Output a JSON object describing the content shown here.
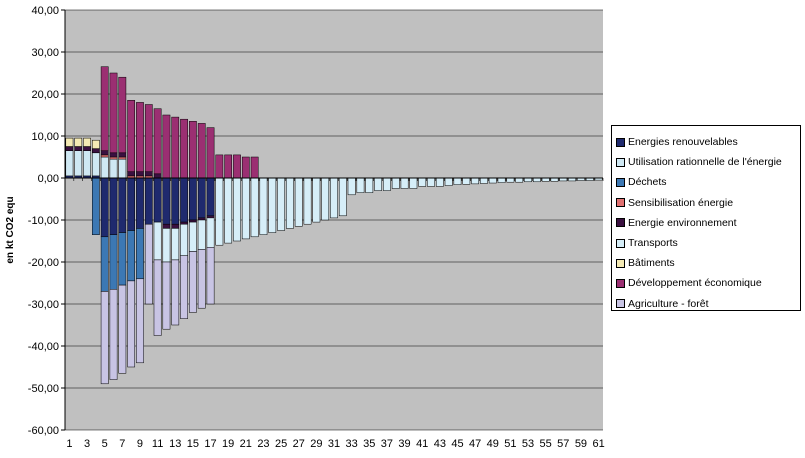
{
  "chart_data": {
    "type": "bar",
    "stacked": true,
    "title": "",
    "xlabel": "",
    "ylabel": "en kt CO2 equ",
    "ylim": [
      -60,
      40
    ],
    "yticks": [
      "40,00",
      "30,00",
      "20,00",
      "10,00",
      "0,00",
      "-10,00",
      "-20,00",
      "-30,00",
      "-40,00",
      "-50,00",
      "-60,00"
    ],
    "x_tick_labels": [
      "1",
      "3",
      "5",
      "7",
      "9",
      "11",
      "13",
      "15",
      "17",
      "19",
      "21",
      "23",
      "25",
      "27",
      "29",
      "31",
      "33",
      "35",
      "37",
      "39",
      "41",
      "43",
      "45",
      "47",
      "49",
      "51",
      "53",
      "55",
      "57",
      "59",
      "61"
    ],
    "categories": [
      1,
      2,
      3,
      4,
      5,
      6,
      7,
      8,
      9,
      10,
      11,
      12,
      13,
      14,
      15,
      16,
      17,
      18,
      19,
      20,
      21,
      22,
      23,
      24,
      25,
      26,
      27,
      28,
      29,
      30,
      31,
      32,
      33,
      34,
      35,
      36,
      37,
      38,
      39,
      40,
      41,
      42,
      43,
      44,
      45,
      46,
      47,
      48,
      49,
      50,
      51,
      52,
      53,
      54,
      55,
      56,
      57,
      58,
      59,
      60,
      61
    ],
    "grid": true,
    "plot_background": "#c0c0c0",
    "legend_position": "right",
    "series": [
      {
        "name": "Energies renouvelables",
        "color": "#1f2a6e",
        "values": [
          0.5,
          0.5,
          0.5,
          0.5,
          -14,
          -13.5,
          -13,
          -12.5,
          -12,
          -11,
          -10.5,
          -11,
          -11,
          -10.5,
          -10,
          -9.5,
          -9,
          0,
          0,
          0,
          0,
          0,
          0,
          0,
          0,
          0,
          0,
          0,
          0,
          0,
          0,
          0,
          0,
          0,
          0,
          0,
          0,
          0,
          0,
          0,
          0,
          0,
          0,
          0,
          0,
          0,
          0,
          0,
          0,
          0,
          0,
          0,
          0,
          0,
          0,
          0,
          0,
          0,
          0,
          0,
          0
        ]
      },
      {
        "name": "Utilisation rationnelle de l'énergie",
        "color": "#cfe8f3",
        "values": [
          6,
          6,
          6,
          5.5,
          5,
          4.5,
          4.5,
          0,
          0,
          0,
          0,
          0,
          0,
          0,
          0,
          0,
          0,
          0,
          0,
          0,
          0,
          0,
          0,
          0,
          0,
          0,
          0,
          0,
          0,
          0,
          0,
          0,
          0,
          0,
          0,
          0,
          0,
          0,
          0,
          0,
          0,
          0,
          0,
          0,
          0,
          0,
          0,
          0,
          0,
          0,
          0,
          0,
          0,
          0,
          0,
          0,
          0,
          0,
          0,
          0,
          0
        ]
      },
      {
        "name": "Déchets",
        "color": "#3c78b4",
        "values": [
          0,
          0,
          0,
          -13.5,
          -13,
          -13,
          -12.5,
          -12,
          -12,
          0,
          0,
          0,
          0,
          0,
          0,
          0,
          0,
          0,
          0,
          0,
          0,
          0,
          0,
          0,
          0,
          0,
          0,
          0,
          0,
          0,
          0,
          0,
          0,
          0,
          0,
          0,
          0,
          0,
          0,
          0,
          0,
          0,
          0,
          0,
          0,
          0,
          0,
          0,
          0,
          0,
          0,
          0,
          0,
          0,
          0,
          0,
          0,
          0,
          0,
          0,
          0
        ]
      },
      {
        "name": "Sensibilisation énergie",
        "color": "#e07070",
        "values": [
          0,
          0,
          0,
          0,
          0.5,
          0.5,
          0.5,
          0.5,
          0.5,
          0.5,
          0,
          0,
          0,
          0,
          0,
          0,
          0,
          0,
          0,
          0,
          0,
          0,
          0,
          0,
          0,
          0,
          0,
          0,
          0,
          0,
          0,
          0,
          0,
          0,
          0,
          0,
          0,
          0,
          0,
          0,
          0,
          0,
          0,
          0,
          0,
          0,
          0,
          0,
          0,
          0,
          0,
          0,
          0,
          0,
          0,
          0,
          0,
          0,
          0,
          0,
          0
        ]
      },
      {
        "name": "Energie environnement",
        "color": "#3a1040",
        "values": [
          1,
          1,
          1,
          1,
          1,
          1,
          1,
          1,
          1,
          1,
          1,
          -1,
          -1,
          -0.5,
          -0.5,
          -0.5,
          -0.5,
          0,
          0,
          0,
          0,
          0,
          0,
          0,
          0,
          0,
          0,
          0,
          0,
          0,
          0,
          0,
          0,
          0,
          0,
          0,
          0,
          0,
          0,
          0,
          0,
          0,
          0,
          0,
          0,
          0,
          0,
          0,
          0,
          0,
          0,
          0,
          0,
          0,
          0,
          0,
          0,
          0,
          0,
          0,
          0
        ]
      },
      {
        "name": "Transports",
        "color": "#d6eef8",
        "values": [
          0,
          0,
          0,
          0,
          0,
          0,
          0,
          0,
          0,
          0,
          -9,
          -8,
          -7.5,
          -7.5,
          -7,
          -7,
          -7,
          -16,
          -15.5,
          -15,
          -14.5,
          -14,
          -13.5,
          -13,
          -12.5,
          -12,
          -11.5,
          -11,
          -10.5,
          -10,
          -9.5,
          -9,
          -4,
          -3.5,
          -3.5,
          -3,
          -3,
          -2.5,
          -2.5,
          -2.5,
          -2,
          -2,
          -2,
          -1.8,
          -1.6,
          -1.5,
          -1.4,
          -1.3,
          -1.2,
          -1.1,
          -1,
          -1,
          -0.9,
          -0.9,
          -0.8,
          -0.8,
          -0.7,
          -0.7,
          -0.6,
          -0.6,
          -0.5
        ]
      },
      {
        "name": "Bâtiments",
        "color": "#f4eab4",
        "values": [
          2,
          2,
          2,
          2,
          0,
          0,
          0,
          0,
          0,
          0,
          0,
          0,
          0,
          0,
          0,
          0,
          0,
          0,
          0,
          0,
          0,
          0,
          0,
          0,
          0,
          0,
          0,
          0,
          0,
          0,
          0,
          0,
          0,
          0,
          0,
          0,
          0,
          0,
          0,
          0,
          0,
          0,
          0,
          0,
          0,
          0,
          0,
          0,
          0,
          0,
          0,
          0,
          0,
          0,
          0,
          0,
          0,
          0,
          0,
          0,
          0
        ]
      },
      {
        "name": "Développement économique",
        "color": "#9b2f72",
        "values": [
          0,
          0,
          0,
          0,
          20,
          19,
          18,
          17,
          16.5,
          16,
          15.5,
          15,
          14.5,
          14,
          13.5,
          13,
          12,
          5.5,
          5.5,
          5.5,
          5,
          5,
          0,
          0,
          0,
          0,
          0,
          0,
          0,
          0,
          0,
          0,
          0,
          0,
          0,
          0,
          0,
          0,
          0,
          0,
          0,
          0,
          0,
          0,
          0,
          0,
          0,
          0,
          0,
          0,
          0,
          0,
          0,
          0,
          0,
          0,
          0,
          0,
          0,
          0,
          0
        ]
      },
      {
        "name": "Agriculture - forêt",
        "color": "#c8c4e4",
        "values": [
          0,
          0,
          0,
          0,
          -22,
          -21.5,
          -21,
          -20.5,
          -20,
          -19,
          -18,
          -16,
          -15.5,
          -15,
          -14.5,
          -14,
          -13.5,
          0,
          0,
          0,
          0,
          0,
          0,
          0,
          0,
          0,
          0,
          0,
          0,
          0,
          0,
          0,
          0,
          0,
          0,
          0,
          0,
          0,
          0,
          0,
          0,
          0,
          0,
          0,
          0,
          0,
          0,
          0,
          0,
          0,
          0,
          0,
          0,
          0,
          0,
          0,
          0,
          0,
          0,
          0,
          0
        ]
      }
    ]
  }
}
